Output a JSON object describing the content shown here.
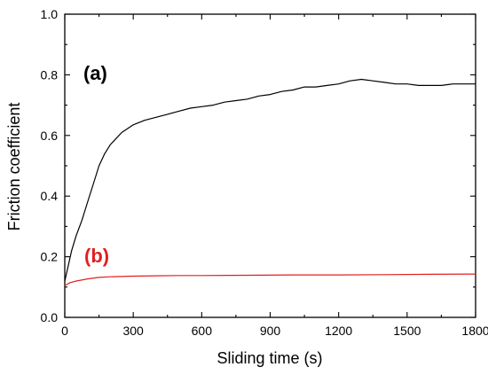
{
  "chart_data": {
    "type": "line",
    "title": "",
    "xlabel": "Sliding time (s)",
    "ylabel": "Friction coefficient",
    "xlim": [
      0,
      1800
    ],
    "ylim": [
      0.0,
      1.0
    ],
    "xticks": [
      "0",
      "300",
      "600",
      "900",
      "1200",
      "1500",
      "1800"
    ],
    "yticks": [
      "0.0",
      "0.2",
      "0.4",
      "0.6",
      "0.8",
      "1.0"
    ],
    "grid": false,
    "legend": "none",
    "annotations": [
      {
        "text": "(a)",
        "color": "#000000"
      },
      {
        "text": "(b)",
        "color": "#e02020"
      }
    ],
    "series": [
      {
        "color": "#000000",
        "x": [
          0,
          15,
          30,
          50,
          75,
          100,
          125,
          150,
          175,
          200,
          225,
          250,
          300,
          350,
          400,
          450,
          500,
          550,
          600,
          650,
          700,
          750,
          800,
          850,
          900,
          950,
          1000,
          1050,
          1100,
          1150,
          1200,
          1250,
          1300,
          1350,
          1400,
          1450,
          1500,
          1550,
          1600,
          1650,
          1700,
          1750,
          1800
        ],
        "y": [
          0.12,
          0.17,
          0.22,
          0.27,
          0.32,
          0.38,
          0.44,
          0.5,
          0.54,
          0.57,
          0.59,
          0.61,
          0.635,
          0.65,
          0.66,
          0.67,
          0.68,
          0.69,
          0.695,
          0.7,
          0.71,
          0.715,
          0.72,
          0.73,
          0.735,
          0.745,
          0.75,
          0.76,
          0.76,
          0.765,
          0.77,
          0.78,
          0.785,
          0.78,
          0.775,
          0.77,
          0.77,
          0.765,
          0.765,
          0.765,
          0.77,
          0.77,
          0.77
        ]
      },
      {
        "color": "#e02020",
        "x": [
          0,
          25,
          50,
          100,
          150,
          200,
          300,
          400,
          500,
          600,
          800,
          1000,
          1200,
          1400,
          1600,
          1800
        ],
        "y": [
          0.105,
          0.115,
          0.12,
          0.127,
          0.132,
          0.134,
          0.136,
          0.137,
          0.138,
          0.138,
          0.139,
          0.14,
          0.14,
          0.141,
          0.142,
          0.143
        ]
      }
    ]
  }
}
